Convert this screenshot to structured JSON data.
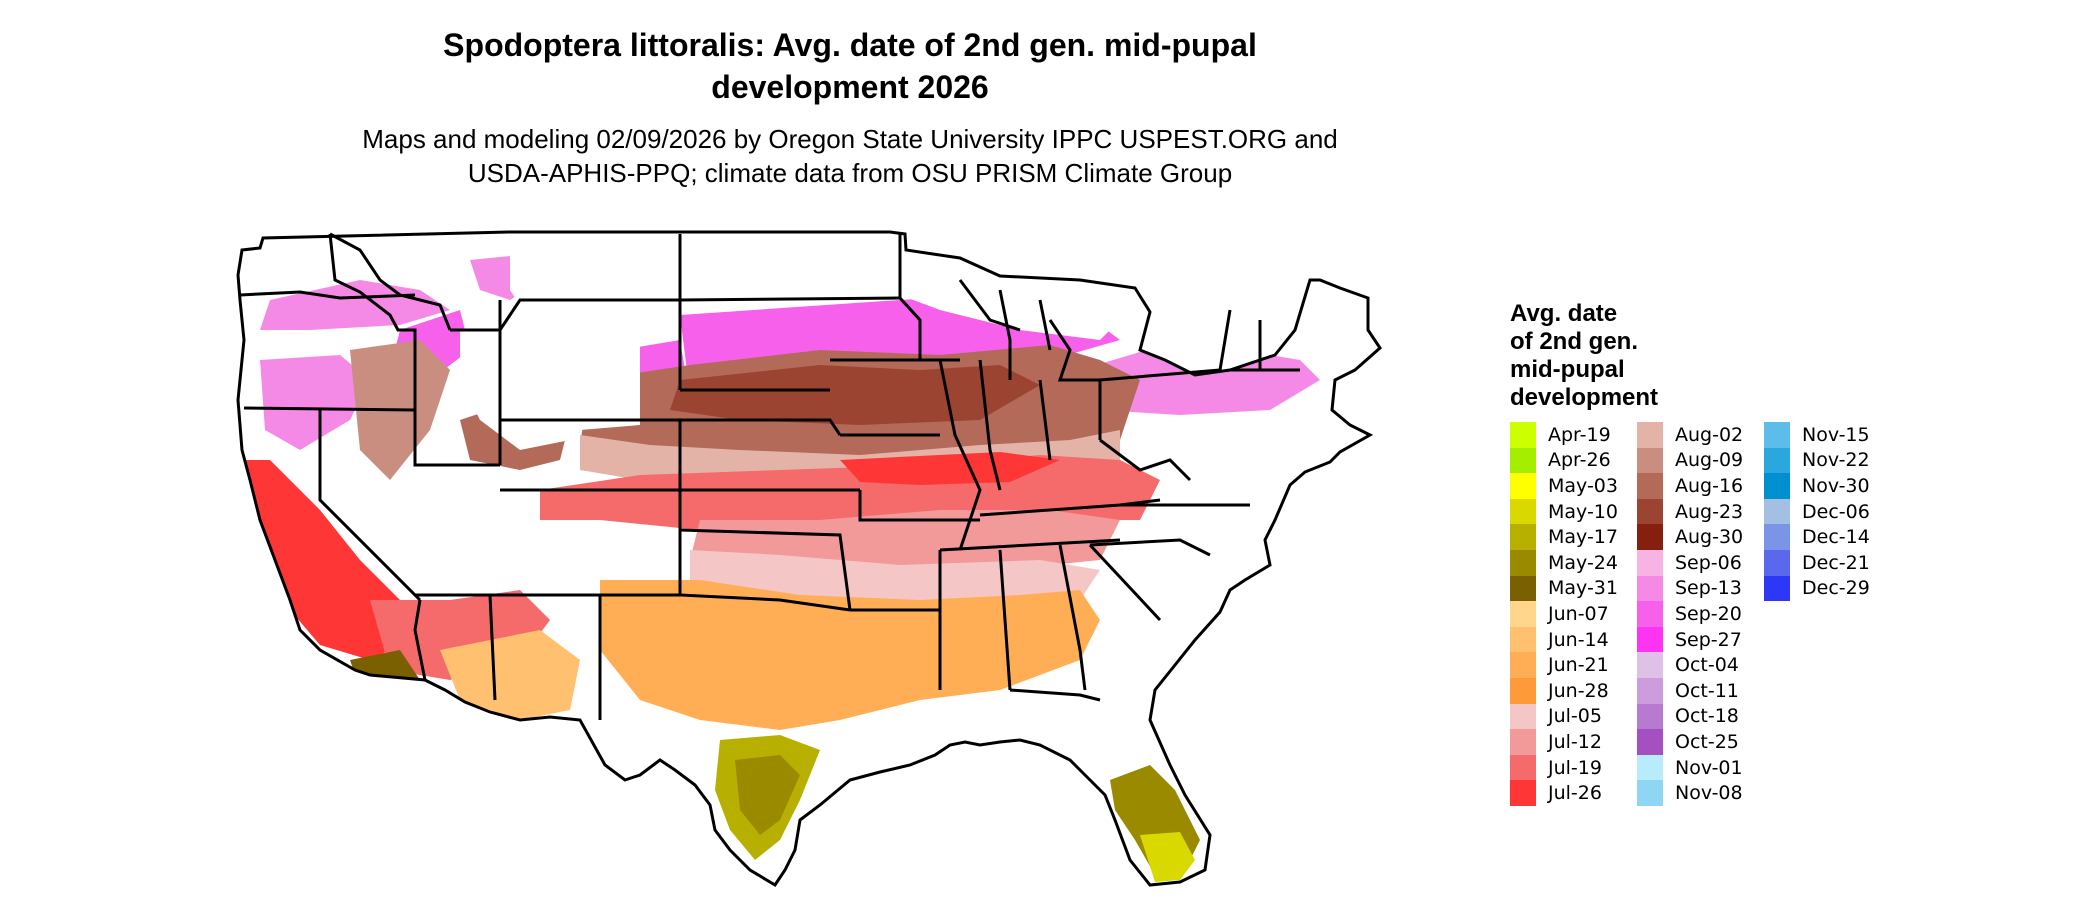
{
  "header": {
    "title_line1": "Spodoptera littoralis: Avg. date of 2nd gen. mid-pupal",
    "title_line2": "development 2026",
    "subtitle_line1": "Maps and modeling 02/09/2026 by Oregon State University IPPC USPEST.ORG and",
    "subtitle_line2": "USDA-APHIS-PPQ; climate data from OSU PRISM Climate Group"
  },
  "legend": {
    "title_lines": [
      "Avg. date",
      "of 2nd gen.",
      "mid-pupal",
      "development"
    ],
    "columns": [
      [
        {
          "label": "Apr-19",
          "color": "#ccff00"
        },
        {
          "label": "Apr-26",
          "color": "#a6ee00"
        },
        {
          "label": "May-03",
          "color": "#ffff00"
        },
        {
          "label": "May-10",
          "color": "#d9d900"
        },
        {
          "label": "May-17",
          "color": "#b8b000"
        },
        {
          "label": "May-24",
          "color": "#998a00"
        },
        {
          "label": "May-31",
          "color": "#7a6000"
        },
        {
          "label": "Jun-07",
          "color": "#ffd68c"
        },
        {
          "label": "Jun-14",
          "color": "#ffc070"
        },
        {
          "label": "Jun-21",
          "color": "#ffae55"
        },
        {
          "label": "Jun-28",
          "color": "#ff9a38"
        },
        {
          "label": "Jul-05",
          "color": "#f5c6c6"
        },
        {
          "label": "Jul-12",
          "color": "#f29a9a"
        },
        {
          "label": "Jul-19",
          "color": "#f56b6b"
        },
        {
          "label": "Jul-26",
          "color": "#ff3636"
        }
      ],
      [
        {
          "label": "Aug-02",
          "color": "#e3b3a8"
        },
        {
          "label": "Aug-09",
          "color": "#c98e80"
        },
        {
          "label": "Aug-16",
          "color": "#b36a58"
        },
        {
          "label": "Aug-23",
          "color": "#9c4432"
        },
        {
          "label": "Aug-30",
          "color": "#85200f"
        },
        {
          "label": "Sep-06",
          "color": "#f7b3e3"
        },
        {
          "label": "Sep-13",
          "color": "#f58ae6"
        },
        {
          "label": "Sep-20",
          "color": "#f760ea"
        },
        {
          "label": "Sep-27",
          "color": "#ff33f2"
        },
        {
          "label": "Oct-04",
          "color": "#dfc0e6"
        },
        {
          "label": "Oct-11",
          "color": "#cc9cdc"
        },
        {
          "label": "Oct-18",
          "color": "#b87ad0"
        },
        {
          "label": "Oct-25",
          "color": "#a450c0"
        },
        {
          "label": "Nov-01",
          "color": "#b8ecfc"
        },
        {
          "label": "Nov-08",
          "color": "#8fd6f5"
        }
      ],
      [
        {
          "label": "Nov-15",
          "color": "#5cbdea"
        },
        {
          "label": "Nov-22",
          "color": "#2aa8de"
        },
        {
          "label": "Nov-30",
          "color": "#0090d0"
        },
        {
          "label": "Dec-06",
          "color": "#a3c0e3"
        },
        {
          "label": "Dec-14",
          "color": "#7a94e8"
        },
        {
          "label": "Dec-21",
          "color": "#5a68ee"
        },
        {
          "label": "Dec-29",
          "color": "#2d38f7"
        }
      ]
    ]
  }
}
